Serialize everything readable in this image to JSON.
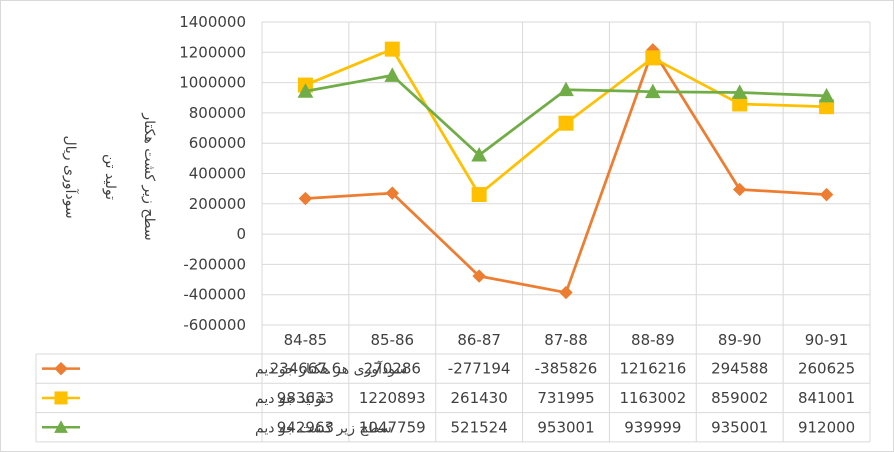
{
  "chart_data": {
    "type": "line",
    "categories": [
      "84-85",
      "85-86",
      "86-87",
      "87-88",
      "88-89",
      "89-90",
      "90-91"
    ],
    "ylim": [
      -600000,
      1400000
    ],
    "ytick_step": 200000,
    "ytick_labels": [
      "1400000",
      "1200000",
      "1000000",
      "800000",
      "600000",
      "400000",
      "200000",
      "0",
      "-200000",
      "-400000",
      "-600000"
    ],
    "grid": true,
    "legend": "data-table",
    "ylabel_lines": [
      "سودآوری  ریال",
      "تولید تن",
      "سطح زیر کشت هکتار"
    ],
    "series": [
      {
        "name": "سودآوری هر هکتار جو دیم",
        "color": "#ED7D31",
        "marker": "diamond",
        "values": [
          234667.6,
          270286,
          -277194,
          -385826,
          1216216,
          294588,
          260625
        ],
        "labels": [
          "234667.6",
          "270286",
          "-277194",
          "-385826",
          "1216216",
          "294588",
          "260625"
        ]
      },
      {
        "name": "تولید جو دیم",
        "color": "#FFC000",
        "marker": "square",
        "values": [
          983633,
          1220893,
          261430,
          731995,
          1163002,
          859002,
          841001
        ],
        "labels": [
          "983633",
          "1220893",
          "261430",
          "731995",
          "1163002",
          "859002",
          "841001"
        ]
      },
      {
        "name": "سطح زیر کشت جو دیم",
        "color": "#70AD47",
        "marker": "triangle",
        "values": [
          942963,
          1047759,
          521524,
          953001,
          939999,
          935001,
          912000
        ],
        "labels": [
          "942963",
          "1047759",
          "521524",
          "953001",
          "939999",
          "935001",
          "912000"
        ]
      }
    ]
  }
}
